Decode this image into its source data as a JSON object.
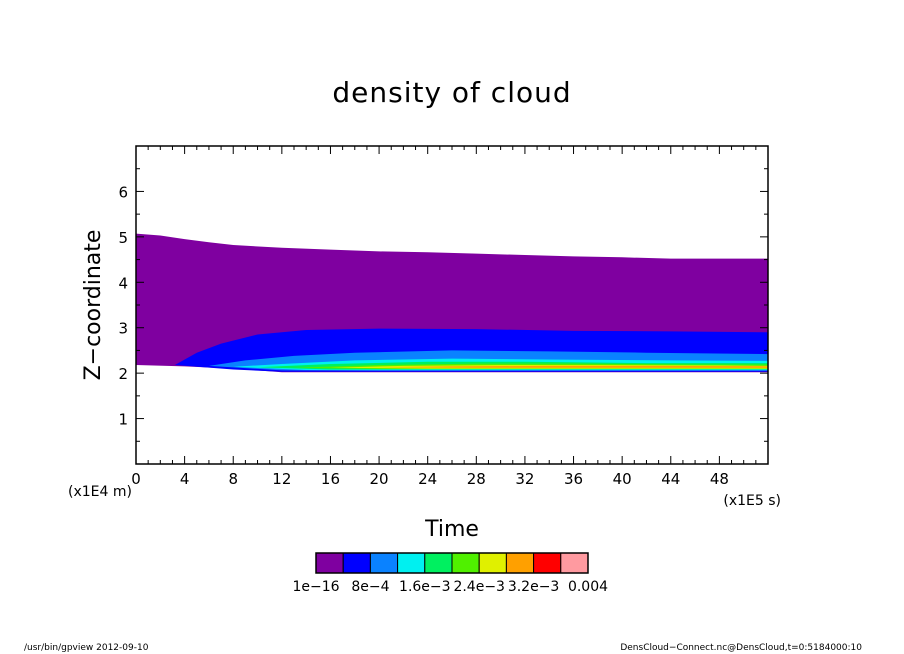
{
  "chart_data": {
    "type": "contour",
    "title": "density of cloud",
    "xlabel": "Time",
    "ylabel": "Z−coordinate",
    "x_unit": "(x1E5 s)",
    "y_unit": "(x1E4 m)",
    "xlim": [
      0,
      52
    ],
    "ylim": [
      0,
      7
    ],
    "x_ticks": [
      0,
      4,
      8,
      12,
      16,
      20,
      24,
      28,
      32,
      36,
      40,
      44,
      48
    ],
    "x_tick_labels": [
      "0",
      "4",
      "8",
      "12",
      "16",
      "20",
      "24",
      "28",
      "32",
      "36",
      "40",
      "44",
      "48"
    ],
    "y_ticks": [
      1,
      2,
      3,
      4,
      5,
      6
    ],
    "y_tick_labels": [
      "1",
      "2",
      "3",
      "4",
      "5",
      "6"
    ],
    "colorbar": {
      "colors": [
        "#7f00a0",
        "#0000ff",
        "#0a82ff",
        "#00f0f0",
        "#00f060",
        "#50f000",
        "#e0f000",
        "#ffa000",
        "#ff0000",
        "#ff9aa0"
      ],
      "labels": [
        "1e−16",
        "8e−4",
        "1.6e−3",
        "2.4e−3",
        "3.2e−3",
        "0.004"
      ]
    },
    "bands": [
      {
        "color": "#7f00a0",
        "lower": [
          [
            0,
            2.18
          ],
          [
            4,
            2.15
          ],
          [
            8,
            2.1
          ],
          [
            12,
            2.02
          ],
          [
            20,
            2.02
          ],
          [
            30,
            2.02
          ],
          [
            40,
            2.02
          ],
          [
            52,
            2.02
          ]
        ],
        "upper": [
          [
            0,
            5.07
          ],
          [
            2,
            5.03
          ],
          [
            4,
            4.95
          ],
          [
            6,
            4.88
          ],
          [
            8,
            4.82
          ],
          [
            12,
            4.76
          ],
          [
            16,
            4.72
          ],
          [
            20,
            4.68
          ],
          [
            24,
            4.66
          ],
          [
            28,
            4.63
          ],
          [
            32,
            4.6
          ],
          [
            36,
            4.57
          ],
          [
            40,
            4.55
          ],
          [
            44,
            4.52
          ],
          [
            48,
            4.52
          ],
          [
            52,
            4.52
          ]
        ]
      },
      {
        "color": "#0000ff",
        "lower": [
          [
            3.2,
            2.18
          ],
          [
            8,
            2.08
          ],
          [
            12,
            2.03
          ],
          [
            20,
            2.03
          ],
          [
            30,
            2.03
          ],
          [
            40,
            2.03
          ],
          [
            52,
            2.03
          ]
        ],
        "upper": [
          [
            3.2,
            2.18
          ],
          [
            5,
            2.45
          ],
          [
            7,
            2.65
          ],
          [
            10,
            2.85
          ],
          [
            14,
            2.95
          ],
          [
            20,
            2.98
          ],
          [
            28,
            2.97
          ],
          [
            36,
            2.93
          ],
          [
            44,
            2.92
          ],
          [
            52,
            2.9
          ]
        ]
      },
      {
        "color": "#0a82ff",
        "lower": [
          [
            6,
            2.16
          ],
          [
            12,
            2.06
          ],
          [
            20,
            2.05
          ],
          [
            30,
            2.05
          ],
          [
            40,
            2.05
          ],
          [
            52,
            2.05
          ]
        ],
        "upper": [
          [
            6,
            2.16
          ],
          [
            9,
            2.28
          ],
          [
            13,
            2.38
          ],
          [
            18,
            2.45
          ],
          [
            26,
            2.5
          ],
          [
            34,
            2.48
          ],
          [
            42,
            2.45
          ],
          [
            52,
            2.42
          ]
        ]
      },
      {
        "color": "#00f0f0",
        "lower": [
          [
            8,
            2.14
          ],
          [
            14,
            2.07
          ],
          [
            24,
            2.07
          ],
          [
            36,
            2.07
          ],
          [
            52,
            2.07
          ]
        ],
        "upper": [
          [
            8,
            2.14
          ],
          [
            12,
            2.2
          ],
          [
            18,
            2.28
          ],
          [
            26,
            2.32
          ],
          [
            34,
            2.3
          ],
          [
            44,
            2.28
          ],
          [
            52,
            2.27
          ]
        ]
      },
      {
        "color": "#00f060",
        "lower": [
          [
            10,
            2.13
          ],
          [
            16,
            2.08
          ],
          [
            26,
            2.08
          ],
          [
            40,
            2.08
          ],
          [
            52,
            2.08
          ]
        ],
        "upper": [
          [
            10,
            2.13
          ],
          [
            16,
            2.2
          ],
          [
            24,
            2.25
          ],
          [
            32,
            2.25
          ],
          [
            42,
            2.22
          ],
          [
            52,
            2.22
          ]
        ]
      },
      {
        "color": "#50f000",
        "lower": [
          [
            13,
            2.12
          ],
          [
            20,
            2.09
          ],
          [
            30,
            2.09
          ],
          [
            44,
            2.09
          ],
          [
            52,
            2.09
          ]
        ],
        "upper": [
          [
            13,
            2.12
          ],
          [
            20,
            2.18
          ],
          [
            28,
            2.21
          ],
          [
            36,
            2.21
          ],
          [
            46,
            2.19
          ],
          [
            52,
            2.19
          ]
        ]
      },
      {
        "color": "#e0f000",
        "lower": [
          [
            16,
            2.12
          ],
          [
            24,
            2.1
          ],
          [
            34,
            2.1
          ],
          [
            46,
            2.1
          ],
          [
            52,
            2.1
          ]
        ],
        "upper": [
          [
            16,
            2.12
          ],
          [
            22,
            2.16
          ],
          [
            30,
            2.18
          ],
          [
            38,
            2.18
          ],
          [
            48,
            2.17
          ],
          [
            52,
            2.16
          ]
        ]
      },
      {
        "color": "#ffa000",
        "lower": [
          [
            20,
            2.13
          ],
          [
            28,
            2.12
          ],
          [
            38,
            2.12
          ],
          [
            52,
            2.12
          ]
        ],
        "upper": [
          [
            20,
            2.13
          ],
          [
            26,
            2.15
          ],
          [
            34,
            2.16
          ],
          [
            42,
            2.16
          ],
          [
            52,
            2.15
          ]
        ]
      }
    ]
  },
  "footer": {
    "left": "/usr/bin/gpview   2012-09-10",
    "right": "DensCloud−Connect.nc@DensCloud,t=0:5184000:10"
  }
}
